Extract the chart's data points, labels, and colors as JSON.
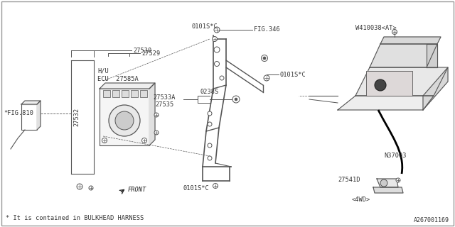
{
  "background": "#ffffff",
  "line_color": "#555555",
  "text_color": "#333333",
  "dark_color": "#222222",
  "footnote": "* It is contained in BULKHEAD HARNESS",
  "diagram_id": "A267001169",
  "labels": {
    "fig810": "*FIG.810",
    "h_u": "H/U",
    "ecu": "ECU",
    "27530": "27530",
    "27529": "27529",
    "27532": "27532",
    "27585a": "27585A",
    "front": "FRONT",
    "fig346": "FIG.346",
    "0101sc_top": "0101S*C",
    "0101sc_mid": "0101S*C",
    "0101sc_bot": "0101S*C",
    "0238s": "0238S",
    "27533a": "27533A",
    "27535": "27535",
    "w410038": "W410038<AT>",
    "n37003": "N37003",
    "27541d": "27541D",
    "4wd": "<4WD>"
  }
}
